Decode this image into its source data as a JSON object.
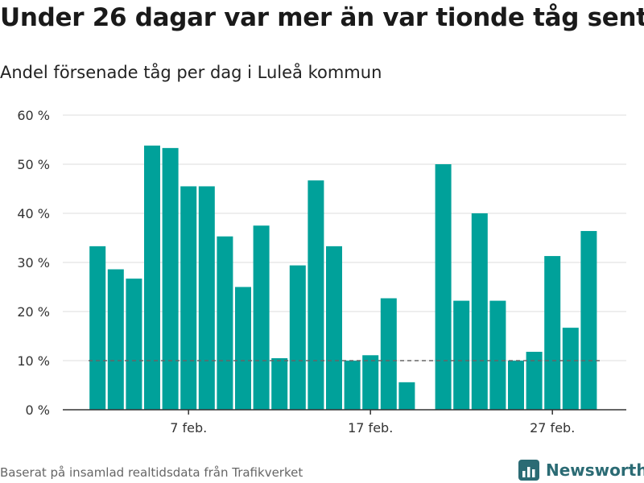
{
  "header": {
    "title": "Under 26 dagar var mer än var tionde tåg sent",
    "subtitle": "Andel försenade tåg per dag i Luleå kommun"
  },
  "footer": {
    "source": "Baserat på insamlad realtidsdata från Trafikverket",
    "brand_name": "Newsworthy"
  },
  "colors": {
    "bar": "#00a19a",
    "grid": "#dddddd",
    "axis": "#333333",
    "threshold": "#666666",
    "brand": "#2b6b74"
  },
  "chart_data": {
    "type": "bar",
    "title": "Under 26 dagar var mer än var tionde tåg sent",
    "subtitle": "Andel försenade tåg per dag i Luleå kommun",
    "ylim": [
      0,
      60
    ],
    "y_ticks": [
      0,
      10,
      20,
      30,
      40,
      50,
      60
    ],
    "y_tick_labels": [
      "0 %",
      "10 %",
      "20 %",
      "30 %",
      "40 %",
      "50 %",
      "60 %"
    ],
    "x_ticks": [
      {
        "day": 7,
        "label": "7 feb."
      },
      {
        "day": 17,
        "label": "17 feb."
      },
      {
        "day": 27,
        "label": "27 feb."
      }
    ],
    "series": [
      {
        "values": [
          {
            "day": 2,
            "value": 33.3
          },
          {
            "day": 3,
            "value": 28.6
          },
          {
            "day": 4,
            "value": 26.7
          },
          {
            "day": 5,
            "value": 53.8
          },
          {
            "day": 6,
            "value": 53.3
          },
          {
            "day": 7,
            "value": 45.5
          },
          {
            "day": 8,
            "value": 45.5
          },
          {
            "day": 9,
            "value": 35.3
          },
          {
            "day": 10,
            "value": 25.0
          },
          {
            "day": 11,
            "value": 37.5
          },
          {
            "day": 12,
            "value": 10.5
          },
          {
            "day": 13,
            "value": 29.4
          },
          {
            "day": 14,
            "value": 46.7
          },
          {
            "day": 15,
            "value": 33.3
          },
          {
            "day": 16,
            "value": 10.0
          },
          {
            "day": 17,
            "value": 11.1
          },
          {
            "day": 18,
            "value": 22.7
          },
          {
            "day": 19,
            "value": 5.6
          },
          {
            "day": 21,
            "value": 50.0
          },
          {
            "day": 22,
            "value": 22.2
          },
          {
            "day": 23,
            "value": 40.0
          },
          {
            "day": 24,
            "value": 22.2
          },
          {
            "day": 25,
            "value": 10.0
          },
          {
            "day": 26,
            "value": 11.8
          },
          {
            "day": 27,
            "value": 31.3
          },
          {
            "day": 28,
            "value": 16.7
          },
          {
            "day": 29,
            "value": 36.4
          }
        ]
      }
    ],
    "threshold": 10,
    "grid": true,
    "legend": "none"
  }
}
